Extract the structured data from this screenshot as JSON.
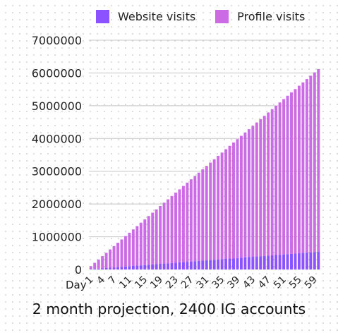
{
  "caption": "2 month projection, 2400 IG accounts",
  "chart_data": {
    "type": "bar",
    "stacked": true,
    "title": "2 month projection, 2400 IG accounts",
    "xlabel": "Day",
    "ylabel": "",
    "ylim": [
      0,
      7000000
    ],
    "yticks": [
      0,
      1000000,
      2000000,
      3000000,
      4000000,
      5000000,
      6000000,
      7000000
    ],
    "grid": true,
    "legend_position": "top",
    "x": [
      1,
      2,
      3,
      4,
      5,
      6,
      7,
      8,
      9,
      10,
      11,
      12,
      13,
      14,
      15,
      16,
      17,
      18,
      19,
      20,
      21,
      22,
      23,
      24,
      25,
      26,
      27,
      28,
      29,
      30,
      31,
      32,
      33,
      34,
      35,
      36,
      37,
      38,
      39,
      40,
      41,
      42,
      43,
      44,
      45,
      46,
      47,
      48,
      49,
      50,
      51,
      52,
      53,
      54,
      55,
      56,
      57,
      58,
      59,
      60
    ],
    "xtick_labels": [
      "1",
      "4",
      "7",
      "11",
      "15",
      "19",
      "23",
      "27",
      "31",
      "35",
      "39",
      "43",
      "47",
      "51",
      "55",
      "59"
    ],
    "series": [
      {
        "name": "Website visits",
        "color": "#8c52ff",
        "values": [
          9000,
          18000,
          27000,
          36000,
          45000,
          54000,
          63000,
          72000,
          81000,
          90000,
          99000,
          108000,
          117000,
          126000,
          135000,
          144000,
          153000,
          162000,
          171000,
          180000,
          189000,
          198000,
          207000,
          216000,
          225000,
          234000,
          243000,
          252000,
          261000,
          270000,
          279000,
          288000,
          297000,
          306000,
          315000,
          324000,
          333000,
          342000,
          351000,
          360000,
          369000,
          378000,
          387000,
          396000,
          405000,
          414000,
          423000,
          432000,
          441000,
          450000,
          459000,
          468000,
          477000,
          486000,
          495000,
          504000,
          513000,
          522000,
          531000,
          540000
        ]
      },
      {
        "name": "Profile visits",
        "color": "#cb6ce6",
        "values": [
          93000,
          186000,
          279000,
          372000,
          465000,
          558000,
          651000,
          744000,
          837000,
          930000,
          1023000,
          1116000,
          1209000,
          1302000,
          1395000,
          1488000,
          1581000,
          1674000,
          1767000,
          1860000,
          1953000,
          2046000,
          2139000,
          2232000,
          2325000,
          2418000,
          2511000,
          2604000,
          2697000,
          2790000,
          2883000,
          2976000,
          3069000,
          3162000,
          3255000,
          3348000,
          3441000,
          3534000,
          3627000,
          3720000,
          3813000,
          3906000,
          3999000,
          4092000,
          4185000,
          4278000,
          4371000,
          4464000,
          4557000,
          4650000,
          4743000,
          4836000,
          4929000,
          5022000,
          5115000,
          5208000,
          5301000,
          5394000,
          5487000,
          5580000
        ]
      }
    ]
  }
}
